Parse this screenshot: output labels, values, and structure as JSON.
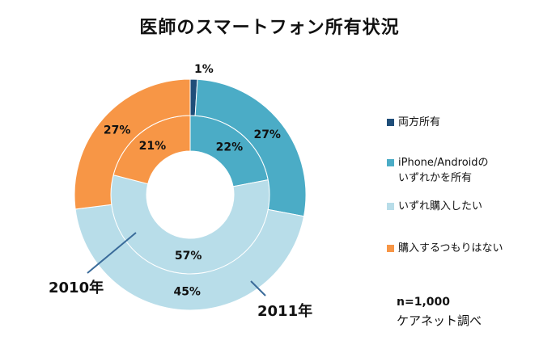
{
  "title": "医師のスマートフォン所有状況",
  "colors": {
    "both": "#1f4e79",
    "either": "#4bacc6",
    "want_to_buy": "#b8dde9",
    "no_plan": "#f79646",
    "label_leader": "#3a6b9a"
  },
  "legend": [
    {
      "label": "両方所有",
      "color": "#1f4e79"
    },
    {
      "label": "iPhone/Androidの\nいずれかを所有",
      "color": "#4bacc6"
    },
    {
      "label": "いずれ購入したい",
      "color": "#b8dde9"
    },
    {
      "label": "購入するつもりはない",
      "color": "#f79646"
    }
  ],
  "series_labels": {
    "inner": "2010年",
    "outer": "2011年"
  },
  "note": {
    "sample_size": "n=1,000",
    "source": "ケアネット調べ"
  },
  "chart_data": {
    "type": "pie",
    "variant": "donut",
    "title": "医師のスマートフォン所有状況",
    "categories": [
      "両方所有",
      "iPhone/Androidのいずれかを所有",
      "いずれ購入したい",
      "購入するつもりはない"
    ],
    "series": [
      {
        "name": "2010年",
        "ring": "inner",
        "values": [
          0,
          22,
          57,
          21
        ],
        "labels": [
          "",
          "22%",
          "57%",
          "21%"
        ]
      },
      {
        "name": "2011年",
        "ring": "outer",
        "values": [
          1,
          27,
          45,
          27
        ],
        "labels": [
          "1%",
          "27%",
          "45%",
          "27%"
        ]
      }
    ],
    "legend_position": "right"
  }
}
